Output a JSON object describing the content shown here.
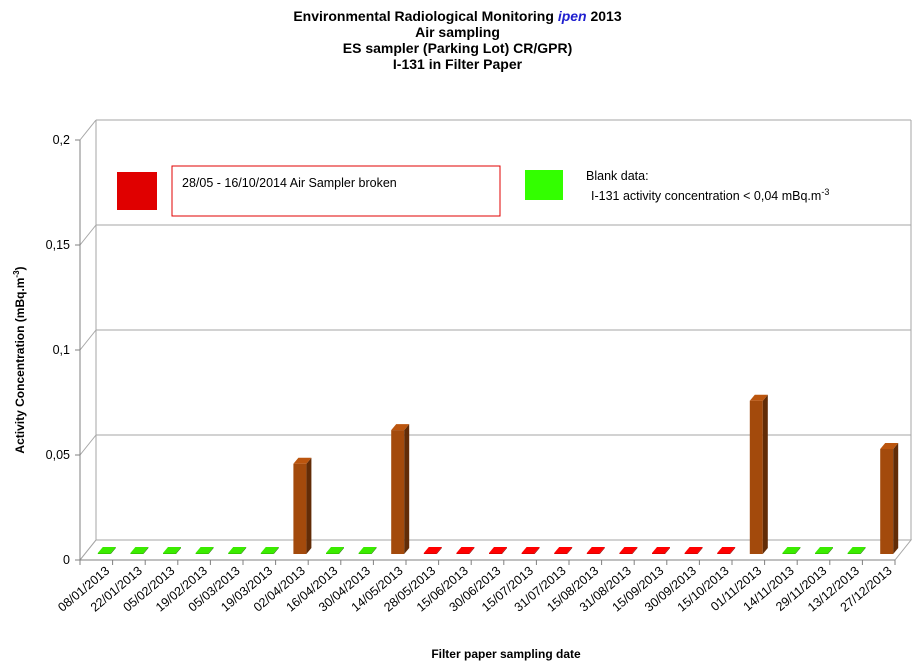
{
  "title": {
    "line1_prefix": "Environmental Radiological Monitoring ",
    "line1_brand": "ipen",
    "line1_suffix": " 2013",
    "line2": "Air sampling",
    "line3": "ES sampler (Parking Lot) CR/GPR)",
    "line4": "I-131 in Filter Paper"
  },
  "colors": {
    "detected": "#a34a0c",
    "broken": "#e00000",
    "blank": "#33cc00",
    "grid": "#a6a6a6",
    "axis": "#808080",
    "legend_box_border": "#e00000"
  },
  "legend": {
    "broken_label": "28/05 - 16/10/2014   Air Sampler broken",
    "blank_line1": "Blank data:",
    "blank_line2_prefix": "I-131 activity concentration  < 0,04 mBq.m",
    "blank_line2_sup": "-3"
  },
  "chart_data": {
    "type": "bar",
    "title": "Environmental Radiological Monitoring ipen 2013 / Air sampling / ES sampler (Parking Lot) CR/GPR) / I-131 in Filter Paper",
    "xlabel": "Filter paper sampling date",
    "ylabel": "Activity Concentration  (mBq.m-3)",
    "ylabel_prefix": "Activity Concentration  (mBq.m",
    "ylabel_sup": "-3",
    "ylabel_suffix": ")",
    "ylim": [
      0,
      0.2
    ],
    "yticks": [
      0,
      0.05,
      0.1,
      0.15,
      0.2
    ],
    "ytick_labels": [
      "0",
      "0,05",
      "0,1",
      "0,15",
      "0,2"
    ],
    "grid": true,
    "categories": [
      "08/01/2013",
      "22/01/2013",
      "05/02/2013",
      "19/02/2013",
      "05/03/2013",
      "19/03/2013",
      "02/04/2013",
      "16/04/2013",
      "30/04/2013",
      "14/05/2013",
      "28/05/2013",
      "15/06/2013",
      "30/06/2013",
      "15/07/2013",
      "31/07/2013",
      "15/08/2013",
      "31/08/2013",
      "15/09/2013",
      "30/09/2013",
      "15/10/2013",
      "01/11/2013",
      "14/11/2013",
      "29/11/2013",
      "13/12/2013",
      "27/12/2013"
    ],
    "values": [
      0,
      0,
      0,
      0,
      0,
      0,
      0.043,
      0,
      0,
      0.059,
      0,
      0,
      0,
      0,
      0,
      0,
      0,
      0,
      0,
      0,
      0.073,
      0,
      0,
      0,
      0.05
    ],
    "status": [
      "blank",
      "blank",
      "blank",
      "blank",
      "blank",
      "blank",
      "detected",
      "blank",
      "blank",
      "detected",
      "broken",
      "broken",
      "broken",
      "broken",
      "broken",
      "broken",
      "broken",
      "broken",
      "broken",
      "broken",
      "detected",
      "blank",
      "blank",
      "blank",
      "detected"
    ]
  }
}
